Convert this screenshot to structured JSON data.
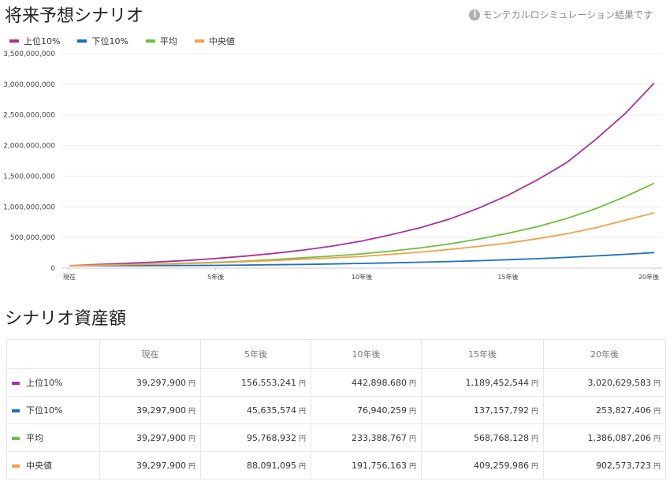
{
  "header": {
    "title": "将来予想シナリオ",
    "note": "モンテカルロシミュレーション結果です",
    "note_icon": "info-icon"
  },
  "legend": [
    {
      "label": "上位10%",
      "color": "#a8329a"
    },
    {
      "label": "下位10%",
      "color": "#1f6fbf"
    },
    {
      "label": "平均",
      "color": "#6fbf3f"
    },
    {
      "label": "中央値",
      "color": "#f5a04a"
    }
  ],
  "chart_data": {
    "type": "line",
    "x": [
      "現在",
      "",
      "",
      "",
      "",
      "5年後",
      "",
      "",
      "",
      "",
      "10年後",
      "",
      "",
      "",
      "",
      "15年後",
      "",
      "",
      "",
      "",
      "20年後"
    ],
    "ylim": [
      0,
      3500000000
    ],
    "yticks": [
      0,
      500000000,
      1000000000,
      1500000000,
      2000000000,
      2500000000,
      3000000000,
      3500000000
    ],
    "ytick_labels": [
      "0",
      "500,000,000",
      "1,000,000,000",
      "1,500,000,000",
      "2,000,000,000",
      "2,500,000,000",
      "3,000,000,000",
      "3,500,000,000"
    ],
    "grid": true,
    "legend_position": "top-left",
    "series": [
      {
        "name": "上位10%",
        "color": "#a8329a",
        "values": [
          39297900,
          60000000,
          80000000,
          100000000,
          125000000,
          156553241,
          195000000,
          240000000,
          295000000,
          360000000,
          442898680,
          545000000,
          660000000,
          800000000,
          980000000,
          1189452544,
          1440000000,
          1720000000,
          2100000000,
          2520000000,
          3020629583
        ]
      },
      {
        "name": "下位10%",
        "color": "#1f6fbf",
        "values": [
          39297900,
          40500000,
          41500000,
          42800000,
          44000000,
          45635574,
          50000000,
          55000000,
          61000000,
          68000000,
          76940259,
          86000000,
          96000000,
          108000000,
          121000000,
          137157792,
          155000000,
          175000000,
          200000000,
          225000000,
          253827406
        ]
      },
      {
        "name": "平均",
        "color": "#6fbf3f",
        "values": [
          39297900,
          48000000,
          58000000,
          68000000,
          80000000,
          95768932,
          115000000,
          140000000,
          168000000,
          198000000,
          233388767,
          278000000,
          330000000,
          395000000,
          475000000,
          568768128,
          675000000,
          810000000,
          970000000,
          1165000000,
          1386087206
        ]
      },
      {
        "name": "中央値",
        "color": "#f5a04a",
        "values": [
          39297900,
          47000000,
          56000000,
          64000000,
          75000000,
          88091095,
          105000000,
          123000000,
          145000000,
          167000000,
          191756163,
          225000000,
          262000000,
          305000000,
          355000000,
          409259986,
          480000000,
          560000000,
          660000000,
          780000000,
          902573723
        ]
      }
    ]
  },
  "table": {
    "title": "シナリオ資産額",
    "columns": [
      "",
      "現在",
      "5年後",
      "10年後",
      "15年後",
      "20年後"
    ],
    "unit": "円",
    "rows": [
      {
        "label": "上位10%",
        "color": "#a8329a",
        "values": [
          "39,297,900",
          "156,553,241",
          "442,898,680",
          "1,189,452,544",
          "3,020,629,583"
        ]
      },
      {
        "label": "下位10%",
        "color": "#1f6fbf",
        "values": [
          "39,297,900",
          "45,635,574",
          "76,940,259",
          "137,157,792",
          "253,827,406"
        ]
      },
      {
        "label": "平均",
        "color": "#6fbf3f",
        "values": [
          "39,297,900",
          "95,768,932",
          "233,388,767",
          "568,768,128",
          "1,386,087,206"
        ]
      },
      {
        "label": "中央値",
        "color": "#f5a04a",
        "values": [
          "39,297,900",
          "88,091,095",
          "191,756,163",
          "409,259,986",
          "902,573,723"
        ]
      }
    ]
  }
}
